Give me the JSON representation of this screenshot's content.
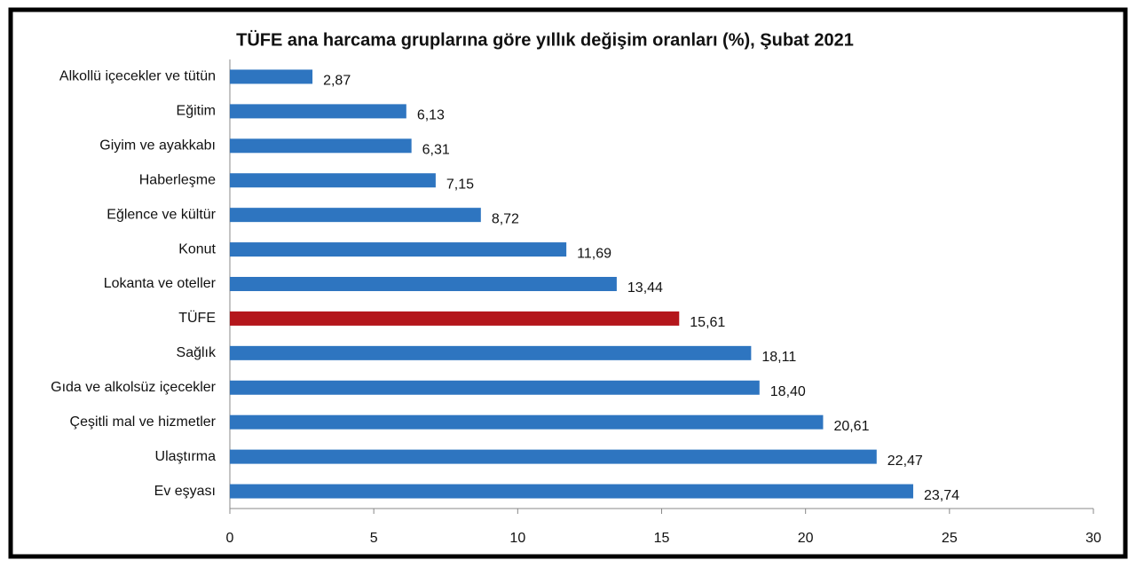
{
  "chart_data": {
    "type": "hbar",
    "title": "TÜFE ana harcama gruplarına göre yıllık değişim oranları (%), Şubat 2021",
    "categories": [
      "Alkollü içecekler ve tütün",
      "Eğitim",
      "Giyim ve ayakkabı",
      "Haberleşme",
      "Eğlence ve kültür",
      "Konut",
      "Lokanta ve oteller",
      "TÜFE",
      "Sağlık",
      "Gıda ve alkolsüz içecekler",
      "Çeşitli mal ve hizmetler",
      "Ulaştırma",
      "Ev eşyası"
    ],
    "values": [
      2.87,
      6.13,
      6.31,
      7.15,
      8.72,
      11.69,
      13.44,
      15.61,
      18.11,
      18.4,
      20.61,
      22.47,
      23.74
    ],
    "value_labels": [
      "2,87",
      "6,13",
      "6,31",
      "7,15",
      "8,72",
      "11,69",
      "13,44",
      "15,61",
      "18,11",
      "18,40",
      "20,61",
      "22,47",
      "23,74"
    ],
    "colors": [
      "#2e75c0",
      "#2e75c0",
      "#2e75c0",
      "#2e75c0",
      "#2e75c0",
      "#2e75c0",
      "#2e75c0",
      "#b4161b",
      "#2e75c0",
      "#2e75c0",
      "#2e75c0",
      "#2e75c0",
      "#2e75c0"
    ],
    "xlim": [
      0,
      30
    ],
    "xticks": [
      0,
      5,
      10,
      15,
      20,
      25,
      30
    ]
  }
}
